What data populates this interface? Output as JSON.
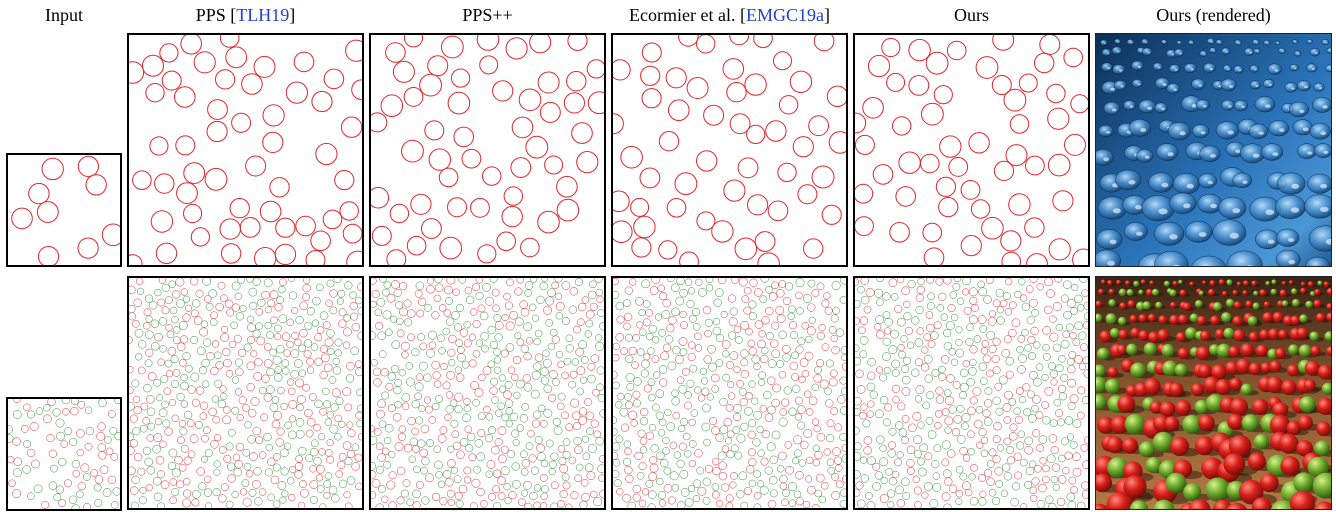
{
  "headers": {
    "input": "Input",
    "pps": {
      "text": "PPS [",
      "ref": "TLH19",
      "close": "]"
    },
    "ppspp": "PPS++",
    "ecormier": {
      "text": "Ecormier et al. [",
      "ref": "EMGC19a",
      "close": "]"
    },
    "ours": "Ours",
    "ours_rendered": "Ours (rendered)"
  },
  "colors": {
    "class_a": "#e3262b",
    "class_b": "#2e8b2e",
    "link": "#1f3fd6",
    "rendered_top_bg": "#1d5a96",
    "rendered_bottom_bg": "#7a4a22"
  },
  "figure": {
    "rows": [
      "row-disks-single-class",
      "row-disks-two-class"
    ],
    "columns": [
      "input",
      "pps",
      "ppspp",
      "ecormier",
      "ours",
      "ours-rendered"
    ]
  }
}
